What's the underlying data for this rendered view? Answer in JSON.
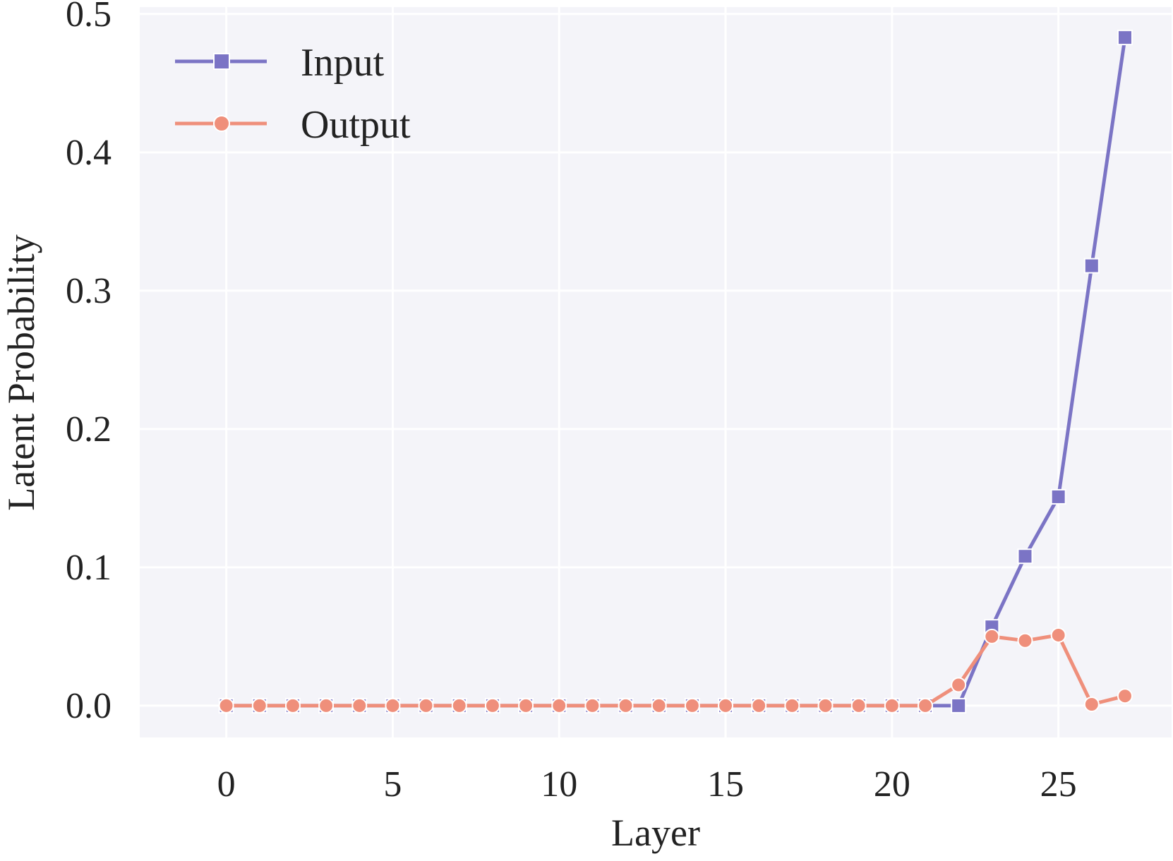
{
  "chart_data": {
    "type": "line",
    "title": "",
    "xlabel": "Layer",
    "ylabel": "Latent Probability",
    "x": [
      0,
      1,
      2,
      3,
      4,
      5,
      6,
      7,
      8,
      9,
      10,
      11,
      12,
      13,
      14,
      15,
      16,
      17,
      18,
      19,
      20,
      21,
      22,
      23,
      24,
      25,
      26,
      27
    ],
    "xticks": [
      0,
      5,
      10,
      15,
      20,
      25
    ],
    "xtick_labels": [
      "0",
      "5",
      "10",
      "15",
      "20",
      "25"
    ],
    "yticks": [
      0.0,
      0.1,
      0.2,
      0.3,
      0.4,
      0.5
    ],
    "ytick_labels": [
      "0.0",
      "0.1",
      "0.2",
      "0.3",
      "0.4",
      "0.5"
    ],
    "xlim": [
      -2.6,
      28.4
    ],
    "ylim": [
      -0.023,
      0.505
    ],
    "grid": true,
    "background": "#f4f4f9",
    "legend_position": "top-left",
    "series": [
      {
        "name": "Input",
        "color": "#7b74c5",
        "marker": "square",
        "values": [
          0,
          0,
          0,
          0,
          0,
          0,
          0,
          0,
          0,
          0,
          0,
          0,
          0,
          0,
          0,
          0,
          0,
          0,
          0,
          0,
          0,
          0,
          0.0,
          0.057,
          0.108,
          0.151,
          0.318,
          0.483
        ]
      },
      {
        "name": "Output",
        "color": "#ef8f7b",
        "marker": "circle",
        "values": [
          0,
          0,
          0,
          0,
          0,
          0,
          0,
          0,
          0,
          0,
          0,
          0,
          0,
          0,
          0,
          0,
          0,
          0,
          0,
          0,
          0,
          0,
          0.015,
          0.05,
          0.047,
          0.051,
          0.001,
          0.007
        ]
      }
    ]
  }
}
